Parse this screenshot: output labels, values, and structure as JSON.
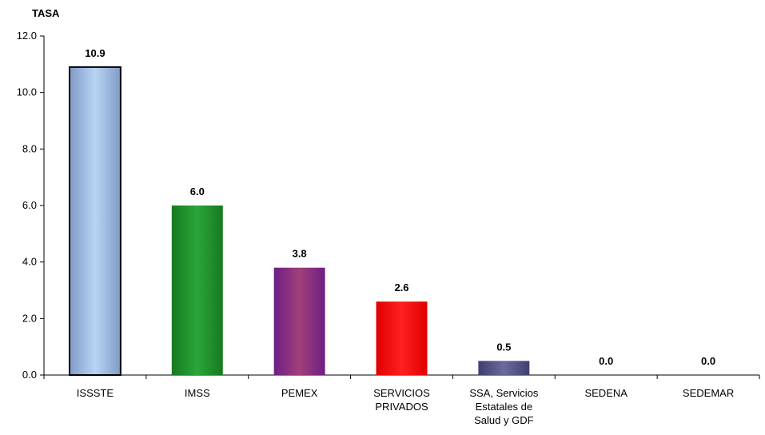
{
  "chart_data": {
    "type": "bar",
    "ylabel": "TASA",
    "xlabel": "",
    "title": "",
    "ylim": [
      0,
      12
    ],
    "yticks": [
      "0.0",
      "2.0",
      "4.0",
      "6.0",
      "8.0",
      "10.0",
      "12.0"
    ],
    "grid": false,
    "legend": "none",
    "categories": [
      [
        "ISSSTE"
      ],
      [
        "IMSS"
      ],
      [
        "PEMEX"
      ],
      [
        "SERVICIOS",
        "PRIVADOS"
      ],
      [
        "SSA, Servicios",
        "Estatales de",
        "Salud y GDF"
      ],
      [
        "SEDENA"
      ],
      [
        "SEDEMAR"
      ]
    ],
    "values": [
      10.9,
      6.0,
      3.8,
      2.6,
      0.5,
      0.0,
      0.0
    ],
    "value_labels": [
      "10.9",
      "6.0",
      "3.8",
      "2.6",
      "0.5",
      "0.0",
      "0.0"
    ],
    "bar_colors": [
      {
        "edge": "#7f9cc6",
        "mid": "#b8d4f4",
        "stroke": "#000000"
      },
      {
        "edge": "#17791f",
        "mid": "#2aa63a",
        "stroke": "none"
      },
      {
        "edge": "#6d1f85",
        "mid": "#a0407a",
        "stroke": "none"
      },
      {
        "edge": "#e00000",
        "mid": "#ff2020",
        "stroke": "none"
      },
      {
        "edge": "#3f3f6e",
        "mid": "#6a6a9e",
        "stroke": "none"
      },
      {
        "edge": "#cccccc",
        "mid": "#cccccc",
        "stroke": "none"
      },
      {
        "edge": "#cccccc",
        "mid": "#cccccc",
        "stroke": "none"
      }
    ]
  }
}
